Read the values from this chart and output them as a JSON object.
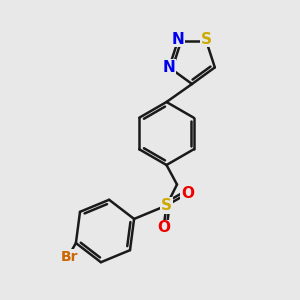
{
  "bg_color": "#e8e8e8",
  "bond_color": "#1a1a1a",
  "bond_width": 1.8,
  "dbo": 0.12,
  "atom_colors": {
    "N": "#0000ee",
    "S_thiadiazole": "#ccaa00",
    "S_sulfonyl": "#ccaa00",
    "O": "#ee0000",
    "Br": "#cc6600",
    "C": "#1a1a1a"
  },
  "font_size_atom": 11,
  "font_size_br": 10
}
